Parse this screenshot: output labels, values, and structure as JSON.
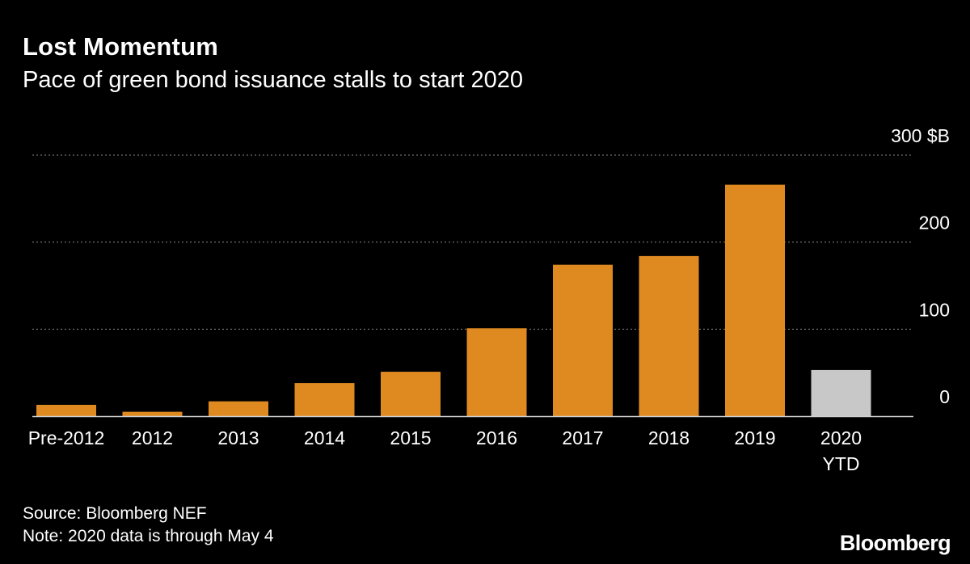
{
  "header": {
    "title": "Lost Momentum",
    "subtitle": "Pace of green bond issuance stalls to start 2020"
  },
  "footer": {
    "source": "Source: Bloomberg NEF",
    "note": "Note: 2020 data is through May 4",
    "brand": "Bloomberg"
  },
  "colors": {
    "background": "#000000",
    "bar": "#DF8A21",
    "bar_highlight": "#C8C8C8",
    "grid": "#8a8a8a",
    "text": "#ffffff"
  },
  "chart_data": {
    "type": "bar",
    "categories": [
      [
        "Pre-2012"
      ],
      [
        "2012"
      ],
      [
        "2013"
      ],
      [
        "2014"
      ],
      [
        "2015"
      ],
      [
        "2016"
      ],
      [
        "2017"
      ],
      [
        "2018"
      ],
      [
        "2019"
      ],
      [
        "2020",
        "YTD"
      ]
    ],
    "values": [
      13,
      5,
      17,
      38,
      51,
      101,
      174,
      184,
      266,
      53
    ],
    "highlight_index": 9,
    "ylim": [
      0,
      300
    ],
    "yticks": [
      {
        "value": 0,
        "label": "0"
      },
      {
        "value": 100,
        "label": "100"
      },
      {
        "value": 200,
        "label": "200"
      },
      {
        "value": 300,
        "label": "300 $B"
      }
    ],
    "grid": true,
    "grid_style": "dotted",
    "y_axis_side": "right"
  }
}
